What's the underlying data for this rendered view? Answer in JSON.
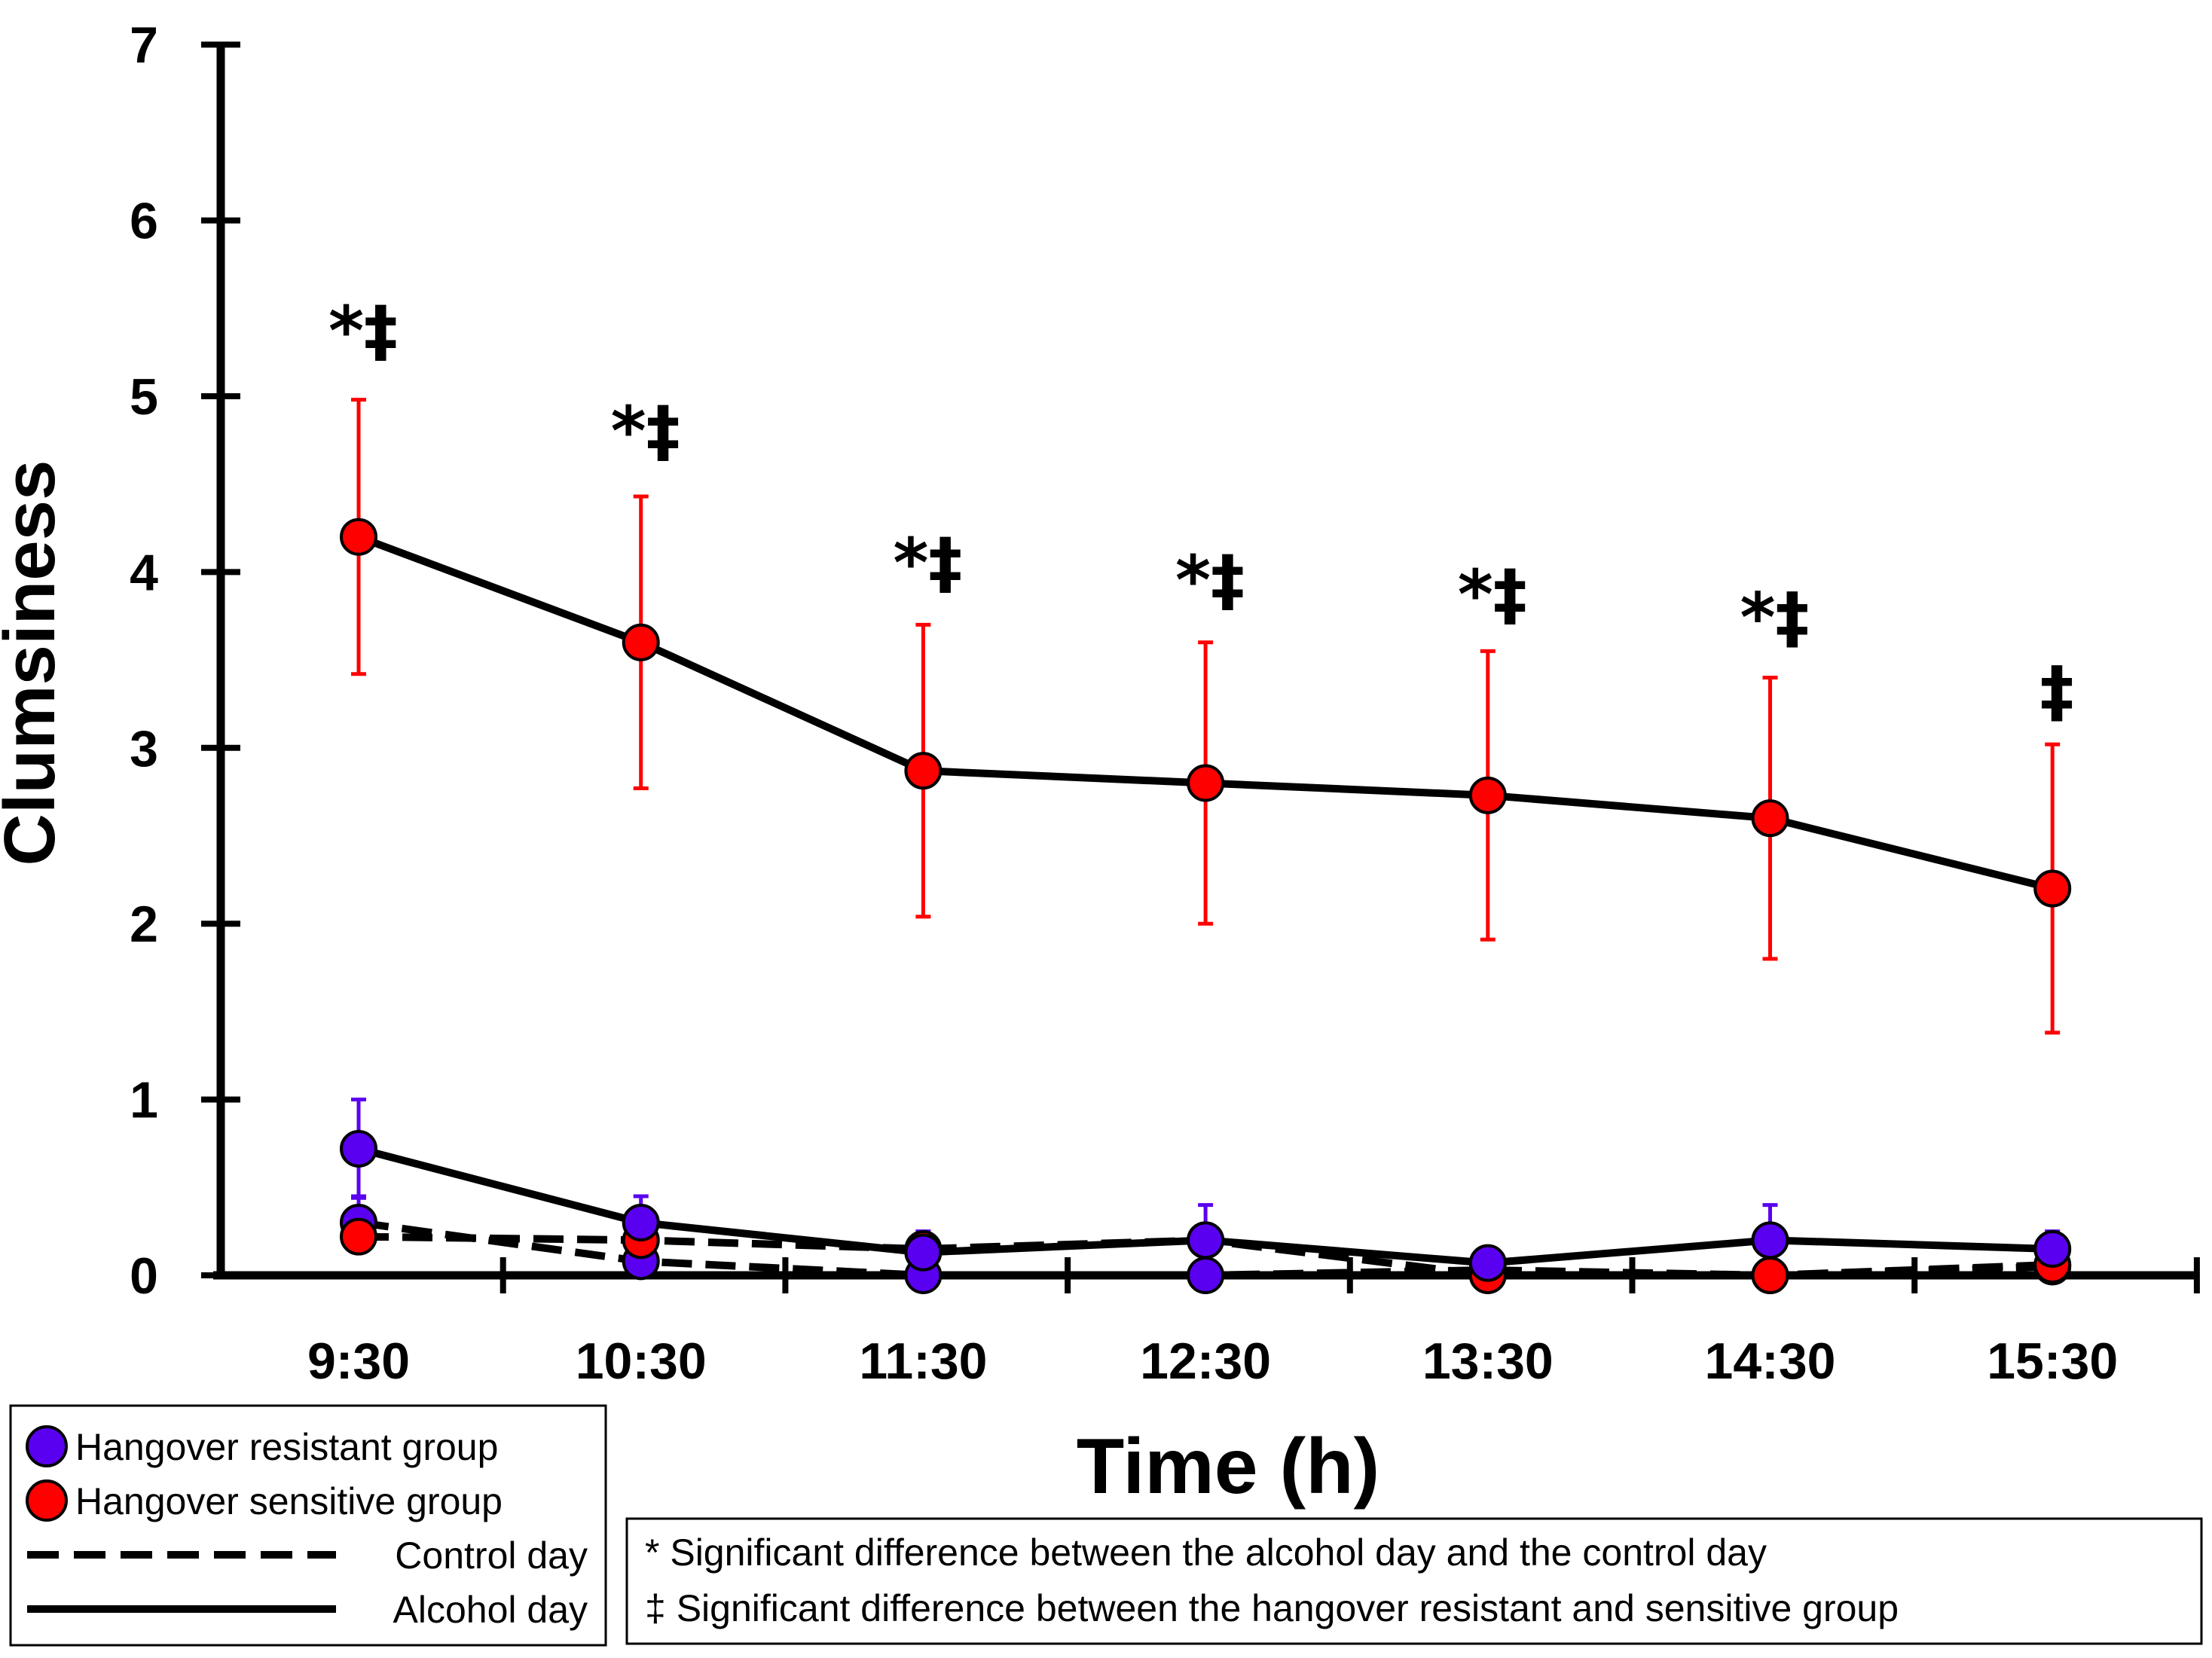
{
  "chart_data": {
    "type": "line",
    "xlabel": "Time (h)",
    "ylabel": "Clumsiness",
    "ylim": [
      0,
      7
    ],
    "yticks": [
      "0",
      "1",
      "2",
      "3",
      "4",
      "5",
      "6",
      "7"
    ],
    "categories": [
      "9:30",
      "10:30",
      "11:30",
      "12:30",
      "13:30",
      "14:30",
      "15:30"
    ],
    "series": [
      {
        "name": "Hangover resistant group - Control day",
        "group": "resistant",
        "day": "control",
        "color": "#5a00f0",
        "values": [
          0.3,
          0.08,
          0.0,
          0.0,
          0.03,
          0.0,
          0.05
        ],
        "err": [
          0.15,
          0.05,
          0.0,
          0.0,
          0.0,
          0.0,
          0.03
        ]
      },
      {
        "name": "Hangover sensitive group - Control day",
        "group": "sensitive",
        "day": "control",
        "color": "#ff0000",
        "values": [
          0.22,
          0.2,
          0.15,
          0.2,
          0.0,
          0.0,
          0.06
        ],
        "err": [
          0.0,
          0.0,
          0.0,
          0.0,
          0.0,
          0.0,
          0.0
        ]
      },
      {
        "name": "Hangover resistant group - Alcohol day",
        "group": "resistant",
        "day": "alcohol",
        "color": "#5a00f0",
        "values": [
          0.72,
          0.3,
          0.13,
          0.2,
          0.07,
          0.2,
          0.15
        ],
        "err": [
          0.28,
          0.15,
          0.12,
          0.2,
          0.0,
          0.2,
          0.1
        ]
      },
      {
        "name": "Hangover sensitive group - Alcohol day",
        "group": "sensitive",
        "day": "alcohol",
        "color": "#ff0000",
        "values": [
          4.2,
          3.6,
          2.87,
          2.8,
          2.73,
          2.6,
          2.2
        ],
        "err": [
          0.78,
          0.83,
          0.83,
          0.8,
          0.82,
          0.8,
          0.82
        ]
      }
    ],
    "annotations": [
      {
        "category": "9:30",
        "text": "*‡",
        "value": 5.35
      },
      {
        "category": "10:30",
        "text": "*‡",
        "value": 4.78
      },
      {
        "category": "11:30",
        "text": "*‡",
        "value": 4.03
      },
      {
        "category": "12:30",
        "text": "*‡",
        "value": 3.93
      },
      {
        "category": "13:30",
        "text": "*‡",
        "value": 3.85
      },
      {
        "category": "14:30",
        "text": "*‡",
        "value": 3.72
      },
      {
        "category": "15:30",
        "text": "‡",
        "value": 3.3
      }
    ]
  },
  "legend": {
    "items": [
      {
        "label": "Hangover resistant group",
        "kind": "marker",
        "color": "#5a00f0"
      },
      {
        "label": "Hangover sensitive group",
        "kind": "marker",
        "color": "#ff0000"
      },
      {
        "label": "Control day",
        "kind": "dashed"
      },
      {
        "label": "Alcohol day",
        "kind": "solid"
      }
    ]
  },
  "notes": {
    "star": "* Significant difference between the alcohol day and the control day",
    "dagger": "‡ Significant difference between the hangover resistant and sensitive group"
  }
}
